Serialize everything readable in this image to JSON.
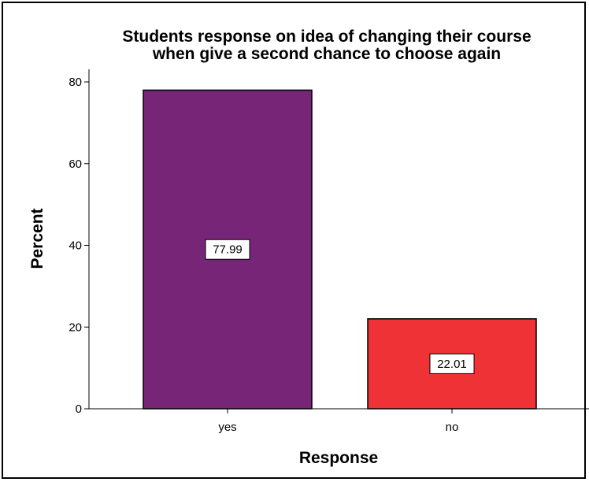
{
  "chart_data": {
    "type": "bar",
    "title_line1": "Students response on idea of changing their course",
    "title_line2": "when give a second chance to choose again",
    "xlabel": "Response",
    "ylabel": "Percent",
    "categories": [
      "yes",
      "no"
    ],
    "values": [
      77.99,
      22.01
    ],
    "data_labels": [
      "77.99",
      "22.01"
    ],
    "colors": [
      "#772577",
      "#ee3236"
    ],
    "ylim": [
      0,
      80
    ],
    "yticks": [
      0,
      20,
      40,
      60,
      80
    ],
    "grid": false,
    "legend": "none"
  }
}
